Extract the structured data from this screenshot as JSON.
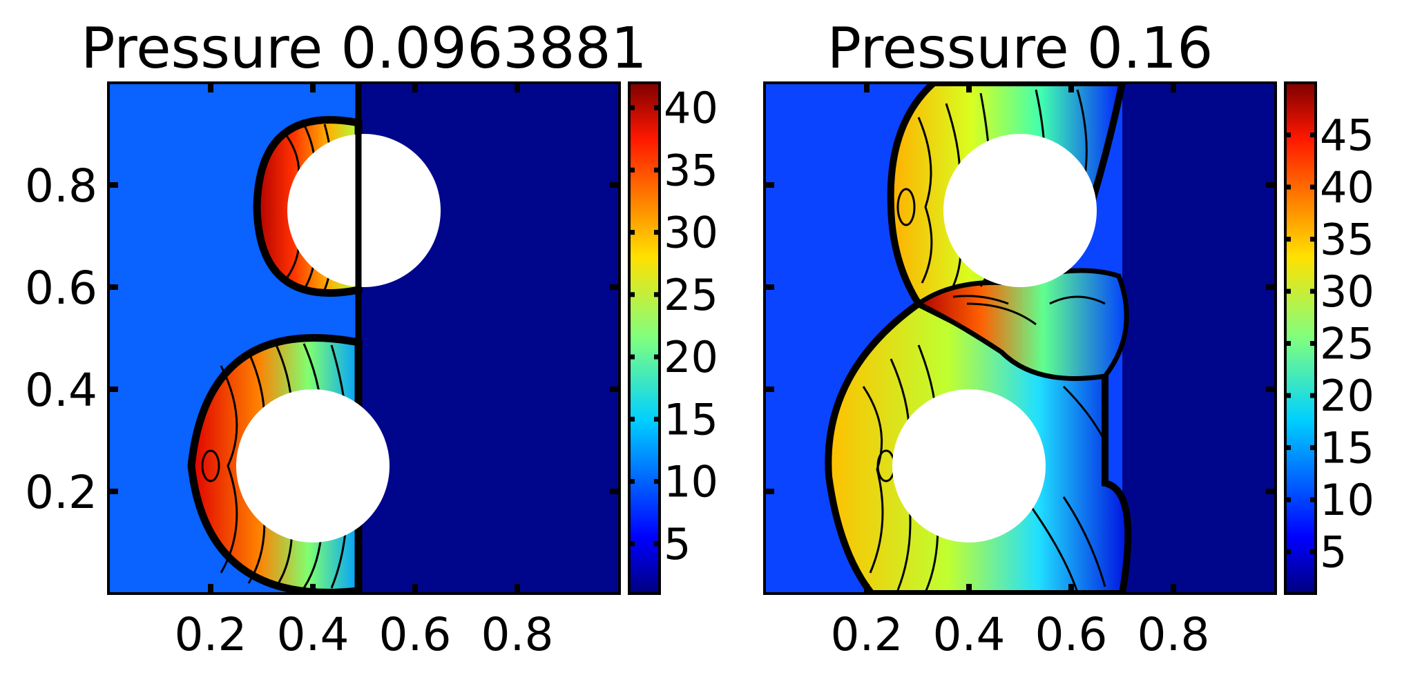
{
  "chart_data": [
    {
      "type": "heatmap",
      "title": "Pressure 0.0963881",
      "xlabel": "",
      "ylabel": "",
      "xlim": [
        0,
        1
      ],
      "ylim": [
        0,
        1
      ],
      "x_ticks": [
        "0.2",
        "0.4",
        "0.6",
        "0.8"
      ],
      "x_tick_values": [
        0.2,
        0.4,
        0.6,
        0.8
      ],
      "y_ticks": [
        "0.2",
        "0.4",
        "0.6",
        "0.8"
      ],
      "y_tick_values": [
        0.2,
        0.4,
        0.6,
        0.8
      ],
      "colorbar": {
        "min": 1,
        "max": 42,
        "ticks": [
          "5",
          "10",
          "15",
          "20",
          "25",
          "30",
          "35",
          "40"
        ],
        "tick_values": [
          5,
          10,
          15,
          20,
          25,
          30,
          35,
          40
        ]
      },
      "obstacles": [
        {
          "cx": 0.5,
          "cy": 0.75,
          "r": 0.15
        },
        {
          "cx": 0.4,
          "cy": 0.25,
          "r": 0.15
        }
      ],
      "shock_front_x": 0.49,
      "grid": false,
      "colormap": "jet"
    },
    {
      "type": "heatmap",
      "title": "Pressure 0.16",
      "xlabel": "",
      "ylabel": "",
      "xlim": [
        0,
        1
      ],
      "ylim": [
        0,
        1
      ],
      "x_ticks": [
        "0.2",
        "0.4",
        "0.6",
        "0.8"
      ],
      "x_tick_values": [
        0.2,
        0.4,
        0.6,
        0.8
      ],
      "y_ticks": [
        "",
        "",
        "",
        ""
      ],
      "y_tick_values": [
        0.2,
        0.4,
        0.6,
        0.8
      ],
      "colorbar": {
        "min": 1,
        "max": 50,
        "ticks": [
          "5",
          "10",
          "15",
          "20",
          "25",
          "30",
          "35",
          "40",
          "45"
        ],
        "tick_values": [
          5,
          10,
          15,
          20,
          25,
          30,
          35,
          40,
          45
        ]
      },
      "obstacles": [
        {
          "cx": 0.5,
          "cy": 0.75,
          "r": 0.15
        },
        {
          "cx": 0.4,
          "cy": 0.25,
          "r": 0.15
        }
      ],
      "shock_front_x": 0.7,
      "grid": false,
      "colormap": "jet"
    }
  ]
}
